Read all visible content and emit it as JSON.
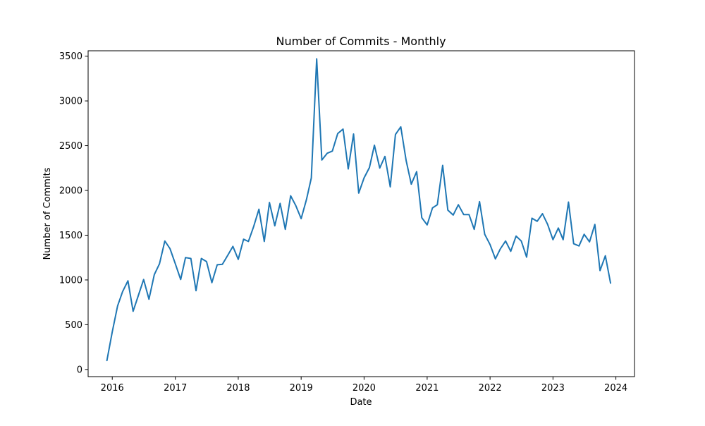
{
  "chart_data": {
    "type": "line",
    "title": "Number of Commits - Monthly",
    "xlabel": "Date",
    "ylabel": "Number of Commits",
    "xlim": [
      "2015-08-14",
      "2024-04-18"
    ],
    "ylim": [
      -80,
      3560
    ],
    "x_ticks": [
      "2016-01-01",
      "2017-01-01",
      "2018-01-01",
      "2019-01-01",
      "2020-01-01",
      "2021-01-01",
      "2022-01-01",
      "2023-01-01",
      "2024-01-01"
    ],
    "x_tick_labels": [
      "2016",
      "2017",
      "2018",
      "2019",
      "2020",
      "2021",
      "2022",
      "2023",
      "2024"
    ],
    "y_ticks": [
      0,
      500,
      1000,
      1500,
      2000,
      2500,
      3000,
      3500
    ],
    "y_tick_labels": [
      "0",
      "500",
      "1000",
      "1500",
      "2000",
      "2500",
      "3000",
      "3500"
    ],
    "grid": false,
    "line_color": "#1f77b4",
    "series": [
      {
        "x": [
          "2015-12-01",
          "2016-01-01",
          "2016-02-01",
          "2016-03-01",
          "2016-04-01",
          "2016-05-01",
          "2016-06-01",
          "2016-07-01",
          "2016-08-01",
          "2016-09-01",
          "2016-10-01",
          "2016-11-01",
          "2016-12-01",
          "2017-01-01",
          "2017-02-01",
          "2017-03-01",
          "2017-04-01",
          "2017-05-01",
          "2017-06-01",
          "2017-07-01",
          "2017-08-01",
          "2017-09-01",
          "2017-10-01",
          "2017-11-01",
          "2017-12-01",
          "2018-01-01",
          "2018-02-01",
          "2018-03-01",
          "2018-04-01",
          "2018-05-01",
          "2018-06-01",
          "2018-07-01",
          "2018-08-01",
          "2018-09-01",
          "2018-10-01",
          "2018-11-01",
          "2018-12-01",
          "2019-01-01",
          "2019-02-01",
          "2019-03-01",
          "2019-04-01",
          "2019-05-01",
          "2019-06-01",
          "2019-07-01",
          "2019-08-01",
          "2019-09-01",
          "2019-10-01",
          "2019-11-01",
          "2019-12-01",
          "2020-01-01",
          "2020-02-01",
          "2020-03-01",
          "2020-04-01",
          "2020-05-01",
          "2020-06-01",
          "2020-07-01",
          "2020-08-01",
          "2020-09-01",
          "2020-10-01",
          "2020-11-01",
          "2020-12-01",
          "2021-01-01",
          "2021-02-01",
          "2021-03-01",
          "2021-04-01",
          "2021-05-01",
          "2021-06-01",
          "2021-07-01",
          "2021-08-01",
          "2021-09-01",
          "2021-10-01",
          "2021-11-01",
          "2021-12-01",
          "2022-01-01",
          "2022-02-01",
          "2022-03-01",
          "2022-04-01",
          "2022-05-01",
          "2022-06-01",
          "2022-07-01",
          "2022-08-01",
          "2022-09-01",
          "2022-10-01",
          "2022-11-01",
          "2022-12-01",
          "2023-01-01",
          "2023-02-01",
          "2023-03-01",
          "2023-04-01",
          "2023-05-01",
          "2023-06-01",
          "2023-07-01",
          "2023-08-01",
          "2023-09-01",
          "2023-10-01",
          "2023-11-01",
          "2023-12-01"
        ],
        "values": [
          100,
          420,
          710,
          870,
          990,
          650,
          830,
          1005,
          785,
          1060,
          1180,
          1435,
          1350,
          1180,
          1005,
          1250,
          1240,
          880,
          1240,
          1205,
          970,
          1170,
          1175,
          1275,
          1375,
          1230,
          1455,
          1430,
          1600,
          1790,
          1430,
          1865,
          1605,
          1855,
          1565,
          1940,
          1830,
          1685,
          1900,
          2140,
          3470,
          2340,
          2415,
          2440,
          2635,
          2685,
          2240,
          2630,
          1970,
          2140,
          2255,
          2505,
          2250,
          2380,
          2040,
          2625,
          2710,
          2335,
          2070,
          2210,
          1695,
          1615,
          1805,
          1840,
          2280,
          1780,
          1725,
          1840,
          1730,
          1730,
          1565,
          1875,
          1510,
          1395,
          1235,
          1345,
          1435,
          1320,
          1490,
          1435,
          1255,
          1690,
          1655,
          1740,
          1620,
          1450,
          1580,
          1450,
          1870,
          1405,
          1380,
          1510,
          1425,
          1620,
          1105,
          1270,
          965
        ]
      }
    ]
  }
}
